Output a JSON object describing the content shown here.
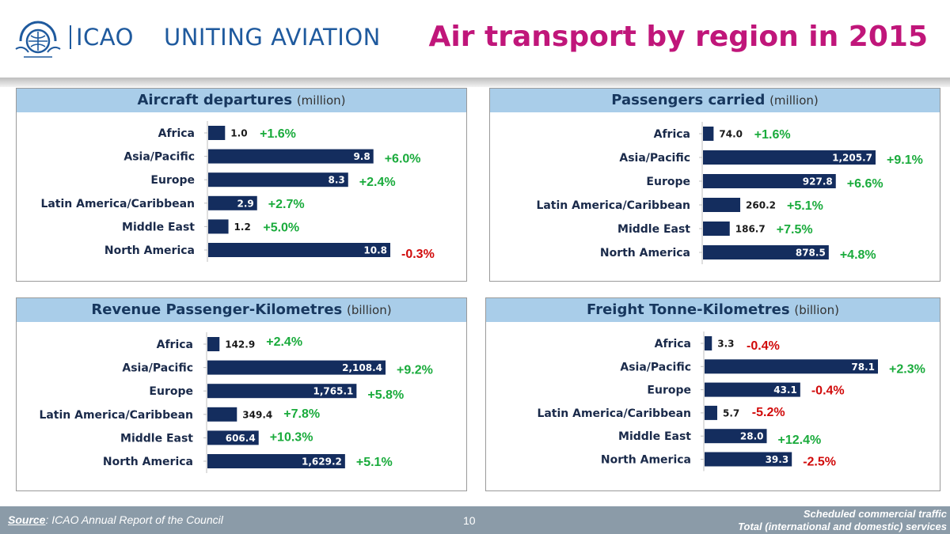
{
  "header": {
    "acronym": "ICAO",
    "tagline": "UNITING AVIATION",
    "title": "Air transport by region in 2015"
  },
  "colors": {
    "bar": "#142d5e",
    "positive": "#1aab3c",
    "negative": "#d10a0a",
    "header_band": "#a9cde9",
    "title": "#c0167a"
  },
  "panels": [
    {
      "title": "Aircraft departures",
      "unit": "(million)"
    },
    {
      "title": "Passengers carried",
      "unit": "(million)"
    },
    {
      "title": "Revenue Passenger-Kilometres",
      "unit": "(billion)"
    },
    {
      "title": "Freight Tonne-Kilometres",
      "unit": "(billion)"
    }
  ],
  "chart_data": [
    {
      "type": "bar",
      "orientation": "horizontal",
      "title": "Aircraft departures (million)",
      "categories": [
        "Africa",
        "Asia/Pacific",
        "Europe",
        "Latin America/Caribbean",
        "Middle East",
        "North America"
      ],
      "values": [
        1.0,
        9.8,
        8.3,
        2.9,
        1.2,
        10.8
      ],
      "labels": [
        "1.0",
        "9.8",
        "8.3",
        "2.9",
        "1.2",
        "10.8"
      ],
      "growth": [
        "+1.6%",
        "+6.0%",
        "+2.4%",
        "+2.7%",
        "+5.0%",
        "-0.3%"
      ]
    },
    {
      "type": "bar",
      "orientation": "horizontal",
      "title": "Passengers carried (million)",
      "categories": [
        "Africa",
        "Asia/Pacific",
        "Europe",
        "Latin America/Caribbean",
        "Middle East",
        "North America"
      ],
      "values": [
        74.0,
        1205.7,
        927.8,
        260.2,
        186.7,
        878.5
      ],
      "labels": [
        "74.0",
        "1,205.7",
        "927.8",
        "260.2",
        "186.7",
        "878.5"
      ],
      "growth": [
        "+1.6%",
        "+9.1%",
        "+6.6%",
        "+5.1%",
        "+7.5%",
        "+4.8%"
      ]
    },
    {
      "type": "bar",
      "orientation": "horizontal",
      "title": "Revenue Passenger-Kilometres (billion)",
      "categories": [
        "Africa",
        "Asia/Pacific",
        "Europe",
        "Latin America/Caribbean",
        "Middle East",
        "North America"
      ],
      "values": [
        142.9,
        2108.4,
        1765.1,
        349.4,
        606.4,
        1629.2
      ],
      "labels": [
        "142.9",
        "2,108.4",
        "1,765.1",
        "349.4",
        "606.4",
        "1,629.2"
      ],
      "growth": [
        "+2.4%",
        "+9.2%",
        "+5.8%",
        "+7.8%",
        "+10.3%",
        "+5.1%"
      ]
    },
    {
      "type": "bar",
      "orientation": "horizontal",
      "title": "Freight Tonne-Kilometres (billion)",
      "categories": [
        "Africa",
        "Asia/Pacific",
        "Europe",
        "Latin America/Caribbean",
        "Middle East",
        "North America"
      ],
      "values": [
        3.3,
        78.1,
        43.1,
        5.7,
        28.0,
        39.3
      ],
      "labels": [
        "3.3",
        "78.1",
        "43.1",
        "5.7",
        "28.0",
        "39.3"
      ],
      "growth": [
        "-0.4%",
        "+2.3%",
        "-0.4%",
        "-5.2%",
        "+12.4%",
        "-2.5%"
      ]
    }
  ],
  "footer": {
    "source_label": "Source",
    "source_text": ": ICAO Annual Report of the Council",
    "page": "10",
    "note_line1": "Scheduled commercial traffic",
    "note_line2": "Total (international and domestic) services"
  }
}
